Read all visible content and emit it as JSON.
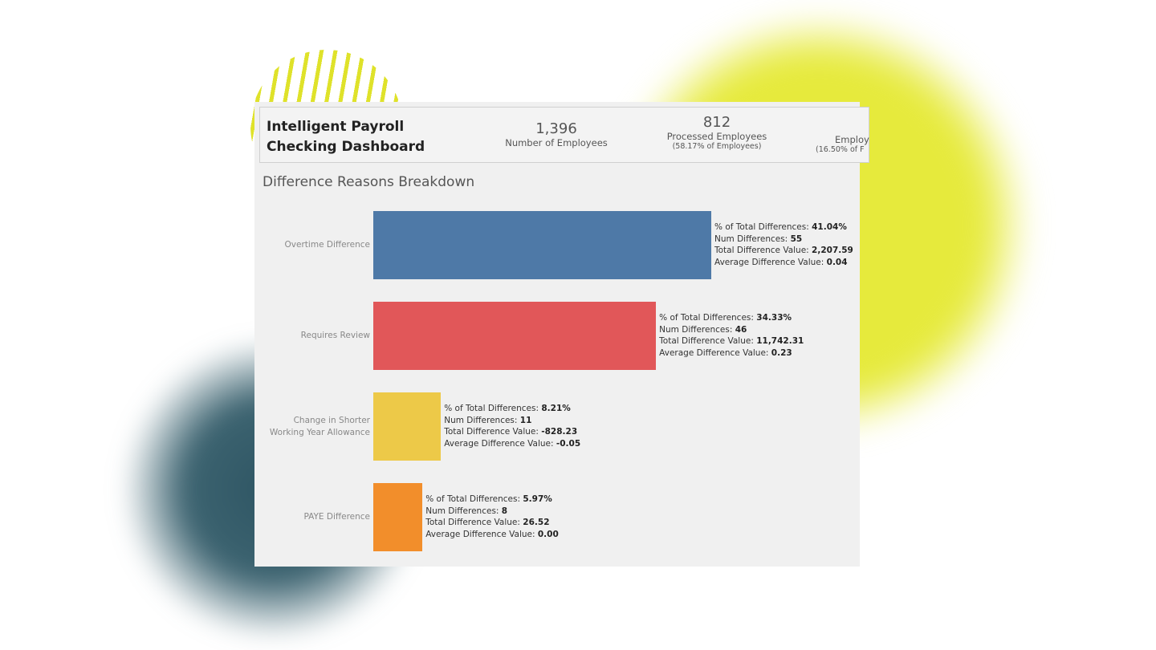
{
  "header": {
    "title": "Intelligent Payroll Checking Dashboard",
    "kpis": [
      {
        "value": {
          "value": 1396,
          "label": "1,396"
        },
        "label": "Number of Employees"
      },
      {
        "value": 812,
        "label": "Processed Employees",
        "sublabel": "(58.17% of Employees)"
      },
      {
        "label": "Employ",
        "sublabel": "(16.50% of F"
      }
    ]
  },
  "chart_data": {
    "type": "bar",
    "orientation": "horizontal",
    "title": "Difference Reasons Breakdown",
    "categories": [
      "Overtime Difference",
      "Requires Review",
      "Change in Shorter Working Year Allowance",
      "PAYE Difference"
    ],
    "values": [
      41.04,
      34.33,
      8.21,
      5.97
    ],
    "value_labels": [
      "41.04%",
      "34.33%",
      "8.21%",
      "5.97%"
    ],
    "colors": [
      "#4e79a7",
      "#e15759",
      "#edc948",
      "#f28e2b"
    ],
    "field_names": [
      "% of Total Differences:",
      "Num Differences:",
      "Total Difference Value:",
      "Average Difference Value:"
    ],
    "num_differences": [
      55,
      46,
      11,
      8
    ],
    "total_difference_value": [
      2207.59,
      11742.31,
      -828.23,
      26.52
    ],
    "total_difference_value_labels": [
      "2,207.59",
      "11,742.31",
      "-828.23",
      "26.52"
    ],
    "average_difference_value": [
      0.04,
      0.23,
      -0.05,
      0
    ],
    "average_difference_value_labels": [
      "0.04",
      "0.23",
      "-0.05",
      "0.00"
    ]
  }
}
